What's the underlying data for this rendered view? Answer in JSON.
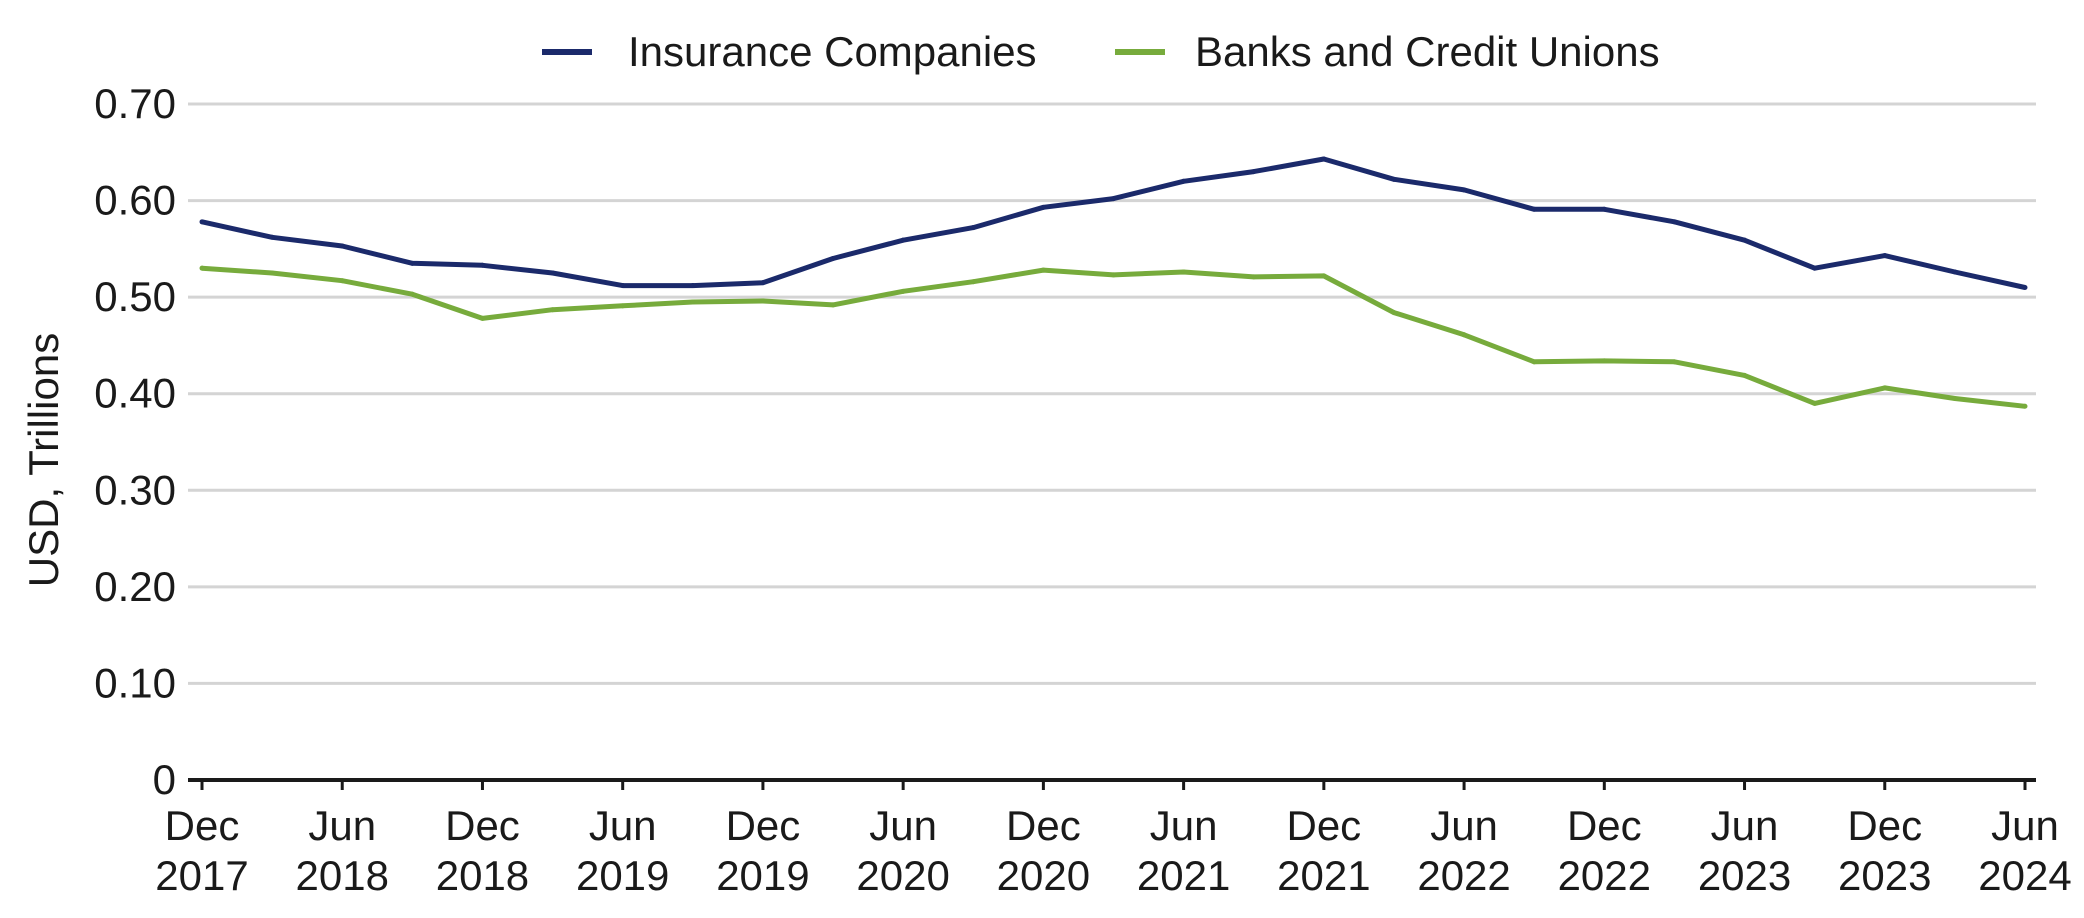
{
  "chart_data": {
    "type": "line",
    "title": "",
    "xlabel": "",
    "ylabel": "USD,  Trillions",
    "ylim": [
      0,
      0.7
    ],
    "yticks": [
      "0",
      "0.10",
      "0.20",
      "0.30",
      "0.40",
      "0.50",
      "0.60",
      "0.70"
    ],
    "grid": true,
    "legend_position": "top-center",
    "x": [
      "Dec 2017",
      "Mar 2018",
      "Jun 2018",
      "Sep 2018",
      "Dec 2018",
      "Mar 2019",
      "Jun 2019",
      "Sep 2019",
      "Dec 2019",
      "Mar 2020",
      "Jun 2020",
      "Sep 2020",
      "Dec 2020",
      "Mar 2021",
      "Jun 2021",
      "Sep 2021",
      "Dec 2021",
      "Mar 2022",
      "Jun 2022",
      "Sep 2022",
      "Dec 2022",
      "Mar 2023",
      "Jun 2023",
      "Sep 2023",
      "Dec 2023",
      "Mar 2024",
      "Jun 2024"
    ],
    "xtick_labels": [
      [
        "Dec",
        "2017"
      ],
      [
        "Jun",
        "2018"
      ],
      [
        "Dec",
        "2018"
      ],
      [
        "Jun",
        "2019"
      ],
      [
        "Dec",
        "2019"
      ],
      [
        "Jun",
        "2020"
      ],
      [
        "Dec",
        "2020"
      ],
      [
        "Jun",
        "2021"
      ],
      [
        "Dec",
        "2021"
      ],
      [
        "Jun",
        "2022"
      ],
      [
        "Dec",
        "2022"
      ],
      [
        "Jun",
        "2023"
      ],
      [
        "Dec",
        "2023"
      ],
      [
        "Jun",
        "2024"
      ]
    ],
    "series": [
      {
        "name": "Insurance Companies",
        "color": "#1b2a6b",
        "values": [
          0.578,
          0.562,
          0.553,
          0.535,
          0.533,
          0.525,
          0.512,
          0.512,
          0.515,
          0.54,
          0.559,
          0.572,
          0.593,
          0.602,
          0.62,
          0.63,
          0.643,
          0.622,
          0.611,
          0.591,
          0.591,
          0.578,
          0.559,
          0.53,
          0.543,
          0.526,
          0.51
        ]
      },
      {
        "name": "Banks and Credit Unions",
        "color": "#77ab3c",
        "values": [
          0.53,
          0.525,
          0.517,
          0.503,
          0.478,
          0.487,
          0.491,
          0.495,
          0.496,
          0.492,
          0.506,
          0.516,
          0.528,
          0.523,
          0.526,
          0.521,
          0.522,
          0.484,
          0.461,
          0.433,
          0.434,
          0.433,
          0.419,
          0.39,
          0.406,
          0.395,
          0.387
        ]
      }
    ]
  }
}
